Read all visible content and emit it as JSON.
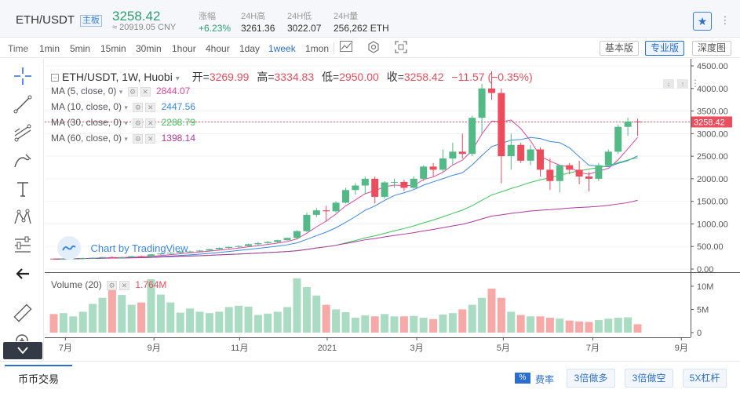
{
  "header": {
    "pair": "ETH/USDT",
    "tag": "主板",
    "price": "3258.42",
    "cny": "≈ 20919.05 CNY",
    "stats": [
      {
        "label": "涨幅",
        "value": "+6.23%"
      },
      {
        "label": "24H高",
        "value": "3261.36"
      },
      {
        "label": "24H低",
        "value": "3022.07"
      },
      {
        "label": "24H量",
        "value": "256,262 ETH"
      }
    ],
    "star_icon": "star-icon",
    "more_icon": "more-icon"
  },
  "toolbar": {
    "time_label": "Time",
    "intervals": [
      "1min",
      "5min",
      "15min",
      "30min",
      "1hour",
      "4hour",
      "1day",
      "1week",
      "1mon"
    ],
    "active_interval": "1week",
    "icons": [
      "indicator-icon",
      "settings-icon",
      "fullscreen-icon"
    ],
    "views": [
      "基本版",
      "专业版",
      "深度图"
    ],
    "active_view": "专业版"
  },
  "tools": [
    "crosshair-icon",
    "trend-line-icon",
    "fib-icon",
    "brush-icon",
    "text-icon",
    "pattern-icon",
    "measure-icon",
    "back-arrow-icon",
    "ruler-icon",
    "zoom-icon"
  ],
  "legend": {
    "symbol": "ETH/USDT, 1W, Huobi",
    "open_label": "开=",
    "open": "3269.99",
    "high_label": "高=",
    "high": "3334.83",
    "low_label": "低=",
    "low": "2950.00",
    "close_label": "收=",
    "close": "3258.42",
    "change": "−11.57 (−0.35%)",
    "ma": [
      {
        "label": "MA (5, close, 0)",
        "value": "2844.07",
        "color": "#e0479e"
      },
      {
        "label": "MA (10, close, 0)",
        "value": "2447.56",
        "color": "#3a87e0"
      },
      {
        "label": "MA (30, close, 0)",
        "value": "2288.79",
        "color": "#3bc45a"
      },
      {
        "label": "MA (60, close, 0)",
        "value": "1398.14",
        "color": "#b0379e"
      }
    ],
    "volume_label": "Volume (20)",
    "volume_value": "1.764M",
    "watermark": "Chart by TradingView"
  },
  "chart_data": {
    "type": "candlestick",
    "ylim": [
      0,
      4500
    ],
    "y_ticks": [
      "4500.00",
      "4000.00",
      "3500.00",
      "3000.00",
      "2500.00",
      "2000.00",
      "1500.00",
      "1000.00",
      "500.00",
      "0.00"
    ],
    "volume_ticks": [
      "10M",
      "5M",
      "0"
    ],
    "volume_ylim": [
      0,
      11000000
    ],
    "x_ticks": [
      "7月",
      "9月",
      "11月",
      "2021",
      "3月",
      "5月",
      "7月",
      "9月"
    ],
    "last_price": "3258.42",
    "candles": [
      [
        230,
        235,
        215,
        220
      ],
      [
        220,
        228,
        212,
        225
      ],
      [
        225,
        245,
        222,
        240
      ],
      [
        240,
        250,
        235,
        245
      ],
      [
        245,
        260,
        240,
        250
      ],
      [
        250,
        270,
        245,
        265
      ],
      [
        265,
        280,
        250,
        255
      ],
      [
        255,
        270,
        248,
        262
      ],
      [
        262,
        290,
        258,
        285
      ],
      [
        285,
        300,
        270,
        280
      ],
      [
        280,
        330,
        275,
        325
      ],
      [
        325,
        350,
        310,
        345
      ],
      [
        345,
        370,
        335,
        360
      ],
      [
        360,
        400,
        340,
        385
      ],
      [
        385,
        410,
        360,
        390
      ],
      [
        390,
        420,
        380,
        410
      ],
      [
        410,
        450,
        395,
        440
      ],
      [
        440,
        480,
        430,
        470
      ],
      [
        470,
        500,
        450,
        490
      ],
      [
        490,
        520,
        470,
        510
      ],
      [
        510,
        560,
        500,
        550
      ],
      [
        550,
        600,
        520,
        575
      ],
      [
        575,
        620,
        560,
        600
      ],
      [
        600,
        650,
        580,
        640
      ],
      [
        640,
        700,
        630,
        690
      ],
      [
        690,
        860,
        680,
        840
      ],
      [
        840,
        1250,
        820,
        1200
      ],
      [
        1200,
        1350,
        1150,
        1300
      ],
      [
        1300,
        1400,
        1050,
        1280
      ],
      [
        1280,
        1500,
        1250,
        1470
      ],
      [
        1470,
        1800,
        1450,
        1750
      ],
      [
        1750,
        1900,
        1650,
        1850
      ],
      [
        1850,
        2050,
        1650,
        2000
      ],
      [
        2000,
        2050,
        1450,
        1600
      ],
      [
        1600,
        1950,
        1560,
        1920
      ],
      [
        1920,
        2000,
        1800,
        1930
      ],
      [
        1930,
        1980,
        1730,
        1800
      ],
      [
        1800,
        2050,
        1780,
        2000
      ],
      [
        2000,
        2300,
        1950,
        2270
      ],
      [
        2270,
        2350,
        2050,
        2200
      ],
      [
        2200,
        2650,
        2150,
        2450
      ],
      [
        2450,
        2800,
        2300,
        2600
      ],
      [
        2600,
        3000,
        2450,
        2550
      ],
      [
        2550,
        3400,
        2500,
        3350
      ],
      [
        3350,
        4100,
        3000,
        4000
      ],
      [
        4000,
        4380,
        3750,
        3900
      ],
      [
        3900,
        4000,
        1900,
        2500
      ],
      [
        2500,
        3000,
        2200,
        2750
      ],
      [
        2750,
        2800,
        2350,
        2400
      ],
      [
        2400,
        2750,
        2300,
        2650
      ],
      [
        2650,
        2700,
        2050,
        2200
      ],
      [
        2200,
        2450,
        1750,
        1950
      ],
      [
        1950,
        2300,
        1700,
        2300
      ],
      [
        2300,
        2350,
        2100,
        2200
      ],
      [
        2200,
        2400,
        1880,
        2050
      ],
      [
        2050,
        2150,
        1720,
        2000
      ],
      [
        2000,
        2350,
        1950,
        2300
      ],
      [
        2300,
        2650,
        2280,
        2600
      ],
      [
        2600,
        3200,
        2550,
        3150
      ],
      [
        3150,
        3350,
        2950,
        3269
      ],
      [
        3269,
        3334,
        2950,
        3258
      ]
    ],
    "volumes": [
      4.0,
      4.2,
      3.5,
      4.5,
      6.2,
      7.5,
      9.2,
      8.1,
      6.0,
      6.5,
      11.5,
      8.2,
      6.5,
      4.3,
      5.2,
      4.5,
      4.2,
      4.5,
      5.5,
      5.8,
      5.6,
      3.8,
      4.1,
      4.5,
      5.5,
      11.7,
      9.8,
      8.0,
      6.0,
      5.0,
      4.4,
      3.2,
      3.7,
      3.5,
      4.0,
      3.5,
      3.5,
      3.6,
      3.2,
      2.9,
      3.9,
      4.2,
      5.0,
      6.0,
      7.5,
      9.5,
      7.5,
      4.5,
      3.8,
      3.5,
      3.5,
      3.2,
      3.0,
      2.6,
      2.4,
      2.3,
      2.7,
      3.0,
      3.2,
      3.3,
      1.8
    ],
    "ma5": [],
    "ma10": [],
    "ma30": [],
    "ma60": []
  },
  "footer": {
    "tab": "币币交易",
    "rate_icon": "percent-icon",
    "rate_label": "费率",
    "buttons": [
      "3倍做多",
      "3倍做空",
      "5X杠杆"
    ]
  },
  "colors": {
    "up": "#53b987",
    "down": "#eb4d5c",
    "up_vol": "#a9dcc3",
    "down_vol": "#f7a9a7",
    "accent": "#2a6fd0"
  }
}
